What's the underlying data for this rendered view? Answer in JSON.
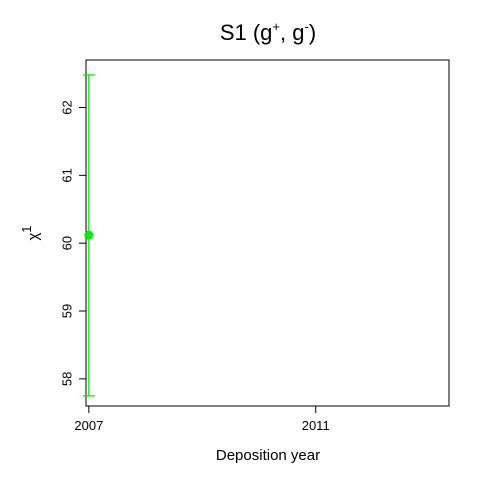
{
  "chart_data": {
    "type": "scatter",
    "title": {
      "prefix": "S1  (g",
      "sup1": "+",
      "middle": ", g",
      "sup2": "-",
      "suffix": ")"
    },
    "xlabel": "Deposition year",
    "ylabel": {
      "base": "χ",
      "sup": "1"
    },
    "xlim": [
      2006.95,
      2013.35
    ],
    "ylim": [
      57.6,
      62.7
    ],
    "xticks": [
      2007,
      2011
    ],
    "yticks": [
      58,
      59,
      60,
      61,
      62
    ],
    "grid": false,
    "series": [
      {
        "color": "#00ee00",
        "points": [
          {
            "x": 2007,
            "y": 60.12,
            "err_low": 57.75,
            "err_high": 62.48
          }
        ]
      }
    ]
  }
}
